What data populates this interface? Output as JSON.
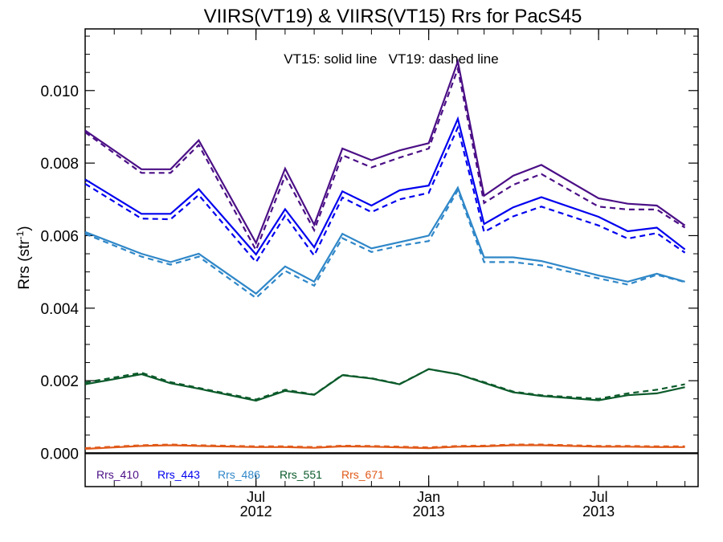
{
  "chart_data": {
    "type": "line",
    "title": "VIIRS(VT19) & VIIRS(VT15)  Rrs for PacS45",
    "annotation": "VT15: solid line   VT19: dashed line",
    "ylabel_main": "Rrs (str",
    "ylabel_sup": "-1",
    "ylabel_close": ")",
    "ylim": [
      -0.00092,
      0.0117
    ],
    "yticks": [
      0.0,
      0.002,
      0.004,
      0.006,
      0.008,
      0.01
    ],
    "ytick_labels": [
      "0.000",
      "0.002",
      "0.004",
      "0.006",
      "0.008",
      "0.010"
    ],
    "xlim": [
      "2012-01-01",
      "2013-10-15"
    ],
    "xticks": [
      {
        "date": "2012-07-01",
        "month": "Jul",
        "year": "2012"
      },
      {
        "date": "2013-01-01",
        "month": "Jan",
        "year": "2013"
      },
      {
        "date": "2013-07-01",
        "month": "Jul",
        "year": "2013"
      }
    ],
    "x": [
      "2012-01-01",
      "2012-03-01",
      "2012-04-01",
      "2012-05-01",
      "2012-07-01",
      "2012-08-01",
      "2012-09-01",
      "2012-10-01",
      "2012-11-01",
      "2012-12-01",
      "2013-01-01",
      "2013-02-01",
      "2013-03-01",
      "2013-04-01",
      "2013-05-01",
      "2013-07-01",
      "2013-08-01",
      "2013-09-01",
      "2013-10-01"
    ],
    "series": [
      {
        "name": "Rrs_410",
        "color": "#4b0f86",
        "vt15": [
          0.0089,
          0.00783,
          0.00783,
          0.00863,
          0.0058,
          0.00785,
          0.0063,
          0.0084,
          0.00808,
          0.00835,
          0.00855,
          0.0108,
          0.0071,
          0.00765,
          0.00795,
          0.00703,
          0.00688,
          0.00683,
          0.00628
        ],
        "vt19": [
          0.00885,
          0.00773,
          0.00773,
          0.0085,
          0.0056,
          0.00765,
          0.00615,
          0.00822,
          0.00788,
          0.00815,
          0.0084,
          0.0106,
          0.0069,
          0.0074,
          0.0077,
          0.0068,
          0.00672,
          0.00672,
          0.00622
        ]
      },
      {
        "name": "Rrs_443",
        "color": "#0000ee",
        "vt15": [
          0.00755,
          0.0066,
          0.0066,
          0.00728,
          0.00548,
          0.00673,
          0.00568,
          0.00722,
          0.00683,
          0.00725,
          0.00738,
          0.00922,
          0.00632,
          0.00678,
          0.00706,
          0.00652,
          0.00612,
          0.00622,
          0.00562
        ],
        "vt19": [
          0.00743,
          0.00647,
          0.00645,
          0.00712,
          0.00527,
          0.00655,
          0.00545,
          0.00705,
          0.00665,
          0.007,
          0.00718,
          0.00898,
          0.0061,
          0.00653,
          0.0068,
          0.00628,
          0.00592,
          0.00607,
          0.00553
        ]
      },
      {
        "name": "Rrs_486",
        "color": "#2f87c8",
        "vt15": [
          0.0061,
          0.0055,
          0.00527,
          0.0055,
          0.0044,
          0.00515,
          0.00473,
          0.00605,
          0.00565,
          0.00582,
          0.006,
          0.00732,
          0.0054,
          0.0054,
          0.0053,
          0.0049,
          0.00473,
          0.00495,
          0.00473
        ],
        "vt19": [
          0.00605,
          0.00542,
          0.0052,
          0.00542,
          0.00428,
          0.00503,
          0.00462,
          0.00593,
          0.00555,
          0.00572,
          0.00585,
          0.00725,
          0.00527,
          0.00527,
          0.00518,
          0.00482,
          0.00465,
          0.00492,
          0.00472
        ]
      },
      {
        "name": "Rrs_551",
        "color": "#0b5a2a",
        "vt15": [
          0.0019,
          0.00218,
          0.00193,
          0.00178,
          0.00145,
          0.00172,
          0.00161,
          0.00215,
          0.00206,
          0.0019,
          0.00232,
          0.00218,
          0.00194,
          0.00168,
          0.00158,
          0.00146,
          0.0016,
          0.00165,
          0.00182
        ],
        "vt19": [
          0.00195,
          0.00222,
          0.00196,
          0.0018,
          0.00148,
          0.00175,
          0.00162,
          0.00216,
          0.00207,
          0.00191,
          0.00232,
          0.00218,
          0.00196,
          0.0017,
          0.0016,
          0.0015,
          0.00165,
          0.00175,
          0.0019
        ]
      },
      {
        "name": "Rrs_671",
        "color": "#e05a1a",
        "vt15": [
          0.00012,
          0.0002,
          0.00022,
          0.0002,
          0.00017,
          0.00017,
          0.00015,
          0.00019,
          0.00018,
          0.00016,
          0.00014,
          0.00018,
          0.00019,
          0.00022,
          0.00022,
          0.00018,
          0.00018,
          0.00017,
          0.00017
        ],
        "vt19": [
          0.00014,
          0.00022,
          0.00024,
          0.00022,
          0.00019,
          0.00019,
          0.00017,
          0.00021,
          0.0002,
          0.00018,
          0.00016,
          0.0002,
          0.00021,
          0.00024,
          0.00024,
          0.0002,
          0.0002,
          0.00019,
          0.00019
        ]
      }
    ],
    "zero_line": 0.0
  }
}
